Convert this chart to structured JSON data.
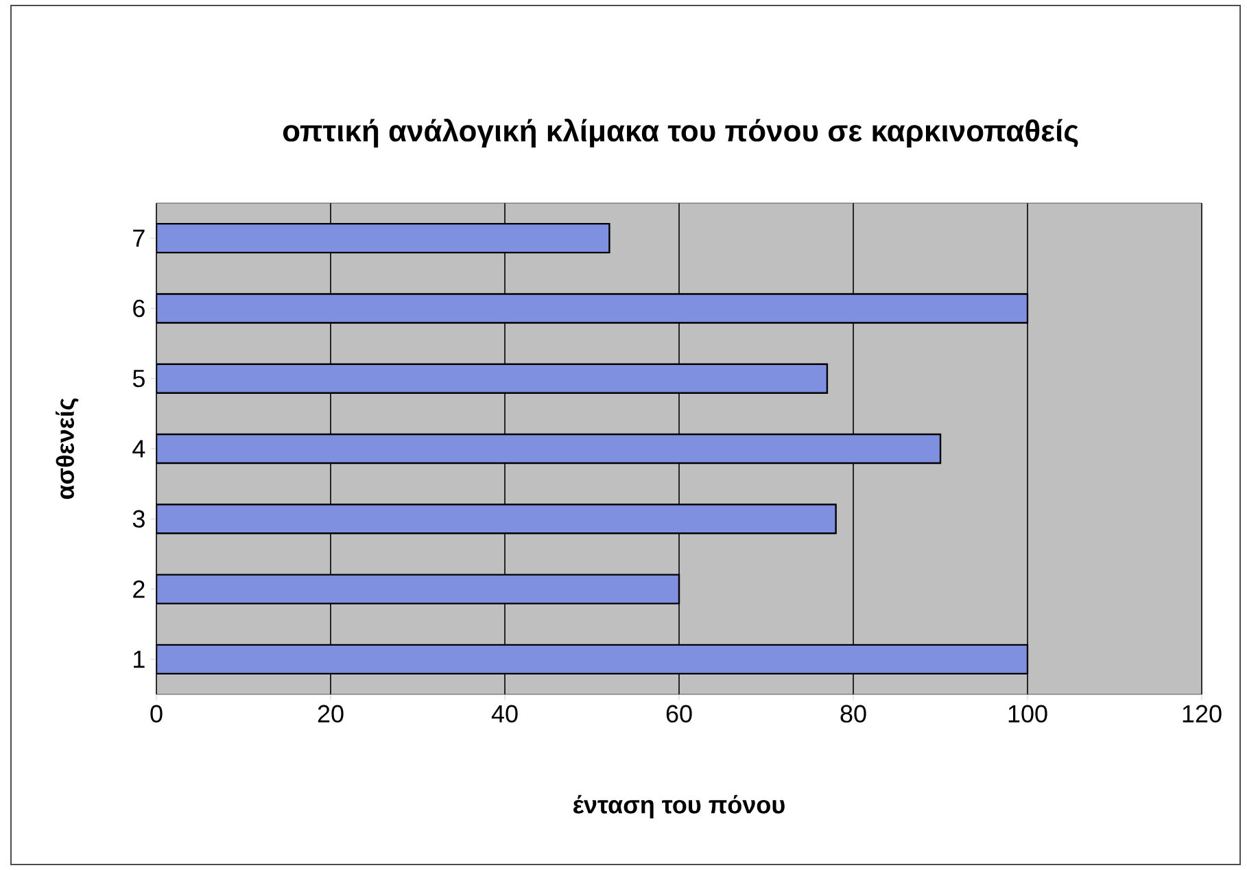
{
  "chart_data": {
    "type": "bar",
    "orientation": "horizontal",
    "title": "οπτική ανάλογική κλίμακα του πόνου σε καρκινοπαθείς",
    "xlabel": "ένταση του πόνου",
    "ylabel": "ασθενείς",
    "categories": [
      "7",
      "6",
      "5",
      "4",
      "3",
      "2",
      "1"
    ],
    "values": [
      52,
      100,
      77,
      90,
      78,
      60,
      100
    ],
    "color": "#7f90e0",
    "xlim": [
      0,
      120
    ],
    "xticks": [
      0,
      20,
      40,
      60,
      80,
      100,
      120
    ],
    "grid": "x"
  }
}
